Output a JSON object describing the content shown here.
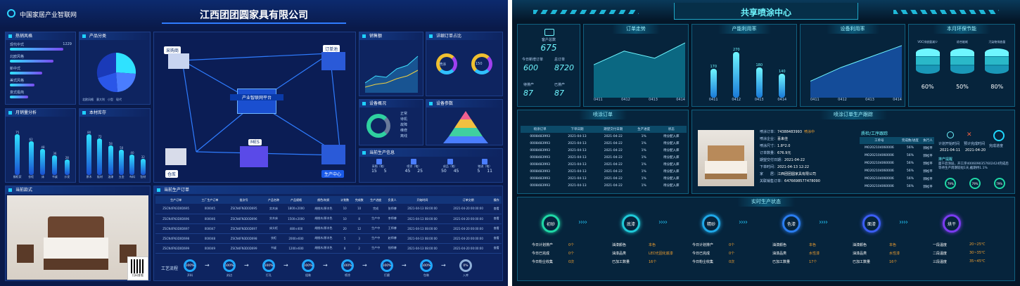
{
  "left": {
    "logo_text": "中国家居产业智联网",
    "title": "江西团团圆家具有限公司",
    "panels": {
      "hot_style": "热销风格",
      "categories": "产品分类",
      "monthly": "月销量分析",
      "stock": "本材库存",
      "sales": "销售额",
      "detail_share": "详细订单占比",
      "equipment": "设备概况",
      "params": "设备参数",
      "current_info": "当前生产信息",
      "current_model": "当前款式",
      "current_orders": "当前生产订单"
    },
    "hot_styles": [
      {
        "name": "现代中式",
        "value": "1229"
      },
      {
        "name": "北欧风格",
        "value": ""
      },
      {
        "name": "新中式",
        "value": ""
      },
      {
        "name": "美式风格",
        "value": ""
      },
      {
        "name": "意式极简",
        "value": ""
      }
    ],
    "hot_style_fills": [
      0.86,
      0.7,
      0.52,
      0.4,
      0.3
    ],
    "pie_legend": [
      "北欧风格",
      "意大利",
      "小型",
      "现代"
    ],
    "monthly_bars": [
      {
        "label": "橱柜家",
        "value": "75"
      },
      {
        "label": "衣柜",
        "value": "62"
      },
      {
        "label": "床",
        "value": "48"
      },
      {
        "label": "书桌",
        "value": "36"
      },
      {
        "label": "沙发",
        "value": "28"
      }
    ],
    "stock_bars": [
      {
        "label": "原木",
        "value": "80"
      },
      {
        "label": "板材",
        "value": "72"
      },
      {
        "label": "油漆",
        "value": "58"
      },
      {
        "label": "五金",
        "value": "50"
      },
      {
        "label": "布料",
        "value": "40"
      },
      {
        "label": "包材",
        "value": "32"
      }
    ],
    "center_nodes": {
      "platform": "产业智联网平台",
      "purchase": "采购商",
      "order": "订单池",
      "warehouse": "仓库",
      "production": "生产中心",
      "mes": "MES"
    },
    "donut_labels": [
      "喷涂",
      "150"
    ],
    "equip_legend": [
      "正常",
      "待机",
      "故障",
      "维修",
      "离线"
    ],
    "prod_info": [
      {
        "label": "采购（笔）",
        "a": "15",
        "b": "5"
      },
      {
        "label": "喷涂（笔）",
        "a": "45",
        "b": "25"
      },
      {
        "label": "成品（笔）",
        "a": "50",
        "b": "45"
      },
      {
        "label": "物流（笔）",
        "a": "5",
        "b": "11"
      }
    ],
    "order_headers": [
      "生产订单",
      "工厂生产订单",
      "批次号",
      "产品名称",
      "产品规格",
      "颜色/材质",
      "计划数",
      "完成数",
      "生产进度",
      "负责人",
      "开始时间",
      "订单交期",
      "操作"
    ],
    "order_rows": [
      [
        "ZSCN4FN3D0D695",
        "000045",
        "ZSCN4FN3D0D695",
        "实木床",
        "1800×2000",
        "胡桃木/原木色",
        "10",
        "10",
        "完成",
        "张师傅",
        "2021-04-13 08:00:00",
        "2021-04-20 00:00:00",
        "查看"
      ],
      [
        "ZSCN4FN3D0D696",
        "000046",
        "ZSCN4FN3D0D696",
        "实木床",
        "1500×2000",
        "胡桃木/原木色",
        "10",
        "8",
        "生产中",
        "李师傅",
        "2021-04-13 08:00:00",
        "2021-04-20 00:00:00",
        "查看"
      ],
      [
        "ZSCN4FN3D0D697",
        "000047",
        "ZSCN4FN3D0D697",
        "床头柜",
        "480×400",
        "胡桃木/原木色",
        "20",
        "12",
        "生产中",
        "王师傅",
        "2021-04-13 08:00:00",
        "2021-04-20 00:00:00",
        "查看"
      ],
      [
        "ZSCN4FN3D0D698",
        "000048",
        "ZSCN4FN3D0D698",
        "衣柜",
        "2000×600",
        "胡桃木/原木色",
        "5",
        "3",
        "生产中",
        "赵师傅",
        "2021-04-13 08:00:00",
        "2021-04-20 00:00:00",
        "查看"
      ],
      [
        "ZSCN4FN3D0D699",
        "000049",
        "ZSCN4FN3D0D699",
        "书桌",
        "1200×600",
        "胡桃木/原木色",
        "8",
        "2",
        "生产中",
        "钱师傅",
        "2021-04-13 08:00:00",
        "2021-04-20 00:00:00",
        "查看"
      ]
    ],
    "flow_label": "工艺流程",
    "flow": [
      {
        "p": "100%",
        "n": "开料"
      },
      {
        "p": "100%",
        "n": "封边"
      },
      {
        "p": "100%",
        "n": "打孔"
      },
      {
        "p": "100%",
        "n": "组装"
      },
      {
        "p": "100%",
        "n": "喷涂"
      },
      {
        "p": "100%",
        "n": "打磨"
      },
      {
        "p": "100%",
        "n": "包装"
      },
      {
        "p": "0%",
        "n": "入库"
      }
    ],
    "qr_caption": "扫码查看"
  },
  "right": {
    "title": "共享喷涂中心",
    "panels": {
      "orders_trend": "订单走势",
      "capacity": "产能利用率",
      "equipment": "设备利用率",
      "eco": "本月环保节能",
      "spray_orders": "喷涂订单",
      "tracking": "喷涂订单生产跟踪",
      "status": "实时生产状态"
    },
    "stats": {
      "customers_label": "客户总数",
      "customers": "675",
      "today_label": "今日新增订单",
      "today": "600",
      "total_label": "总订单",
      "total": "8720",
      "pending_label": "待排产",
      "pending": "87",
      "done_label": "已排产",
      "done": "87"
    },
    "trend_x": [
      "0411",
      "0412",
      "0413",
      "0414"
    ],
    "trend_values": [
      60,
      85,
      72,
      100
    ],
    "capacity_bars": [
      {
        "x": "0411",
        "v": "170"
      },
      {
        "x": "0412",
        "v": "270"
      },
      {
        "x": "0413",
        "v": "180"
      },
      {
        "x": "0414",
        "v": "140"
      }
    ],
    "capacity_values": [
      170,
      270,
      180,
      140
    ],
    "capacity_max": 300,
    "equip_x": [
      "0411",
      "0412",
      "0413",
      "0414"
    ],
    "equip_values": [
      30,
      55,
      75,
      95
    ],
    "eco": [
      {
        "label": "VOC排放量减少",
        "v": "60%"
      },
      {
        "label": "综合能耗",
        "v": "50%"
      },
      {
        "label": "污染物排放量",
        "v": "80%"
      }
    ],
    "spray_headers": [
      "喷涂订单",
      "下单日期",
      "期望交付日期",
      "生产进度",
      "状态"
    ],
    "spray_rows": [
      [
        "0008483993",
        "2021-04-13",
        "2021-04-22",
        "1%",
        "待分配入库"
      ],
      [
        "0008483993",
        "2021-04-13",
        "2021-04-22",
        "1%",
        "待分配入库"
      ],
      [
        "0008483993",
        "2021-04-13",
        "2021-04-22",
        "1%",
        "待分配入库"
      ],
      [
        "0008483993",
        "2021-04-13",
        "2021-04-22",
        "1%",
        "待分配入库"
      ],
      [
        "0008483993",
        "2021-04-13",
        "2021-04-22",
        "1%",
        "待分配入库"
      ],
      [
        "0008483993",
        "2021-04-13",
        "2021-04-22",
        "1%",
        "待分配入库"
      ],
      [
        "0008483993",
        "2021-04-13",
        "2021-04-22",
        "1%",
        "待分配入库"
      ],
      [
        "0008483993",
        "2021-04-13",
        "2021-04-22",
        "1%",
        "待分配入库"
      ]
    ],
    "order_info": [
      {
        "k": "喷涂订单：",
        "v": "74388483993",
        "extra": "喷涂中"
      },
      {
        "k": "喷涂企业：",
        "v": "喜来佳"
      },
      {
        "k": "喷涂尺寸：",
        "v": "1.8*2.0"
      },
      {
        "k": "订单数量：",
        "v": "676.9元"
      },
      {
        "k": "期望交付日期：",
        "v": "2021-04-22"
      },
      {
        "k": "下单时间：",
        "v": "2021-04-13 12:22"
      },
      {
        "k": "家　　居：",
        "v": "江西团团圆家具有限公司"
      },
      {
        "k": "关联销售订单：",
        "v": "6476698577478090"
      }
    ],
    "process_title": "质检/工序跟踪",
    "process_headers": [
      "工单号",
      "完成数/进度",
      "执行人"
    ],
    "process_rows": [
      [
        "MO202104060006",
        "56%",
        "郭松平"
      ],
      [
        "MO202104060006",
        "56%",
        "郭松平"
      ],
      [
        "MO202104060006",
        "56%",
        "郭松平"
      ],
      [
        "MO202104060006",
        "56%",
        "郭松平"
      ],
      [
        "MO202104060006",
        "56%",
        "郭松平"
      ],
      [
        "MO202104060006",
        "56%",
        "郭松平"
      ]
    ],
    "plan": {
      "plan_label": "计划开始时间",
      "plan": "2021-04-11",
      "finish_label": "预计完成时间",
      "finish": "2021-04-20",
      "done_label": "完成进度"
    },
    "notice_title": "排产提醒",
    "notice_text": "面干后涂层，开工序4006090357602424完成后等待生产周期较短1天,截期待1.1%",
    "gauges": [
      "79%",
      "79%",
      "79%"
    ],
    "stages": [
      {
        "name": "初砂",
        "color": "#1fd8a6"
      },
      {
        "name": "底漆",
        "color": "#1fc9d8"
      },
      {
        "name": "精砂",
        "color": "#1fa8e8"
      },
      {
        "name": "色漆",
        "color": "#2a7df0"
      },
      {
        "name": "面漆",
        "color": "#3b5ef5"
      },
      {
        "name": "烘干",
        "color": "#7a3cf0"
      }
    ],
    "stage_stats": [
      [
        {
          "k": "今日计划排产",
          "v": "0个"
        },
        {
          "k": "今日已完成",
          "v": "0个"
        },
        {
          "k": "今日粉尘收集",
          "v": "0次"
        }
      ],
      [
        {
          "k": "油漆颜色",
          "v": "本色"
        },
        {
          "k": "油漆品类",
          "v": "LED光固化底漆"
        },
        {
          "k": "已加工数量",
          "v": "16个"
        }
      ],
      [
        {
          "k": "今日计划排产",
          "v": "0个"
        },
        {
          "k": "今日已完成",
          "v": "0个"
        },
        {
          "k": "今日粉尘收集",
          "v": "0次"
        }
      ],
      [
        {
          "k": "油漆颜色",
          "v": "本色"
        },
        {
          "k": "油漆品类",
          "v": "水性漆"
        },
        {
          "k": "已加工数量",
          "v": "17个"
        }
      ],
      [
        {
          "k": "油漆颜色",
          "v": "本色"
        },
        {
          "k": "油漆品类",
          "v": "水性漆"
        },
        {
          "k": "已加工数量",
          "v": "16个"
        }
      ],
      [
        {
          "k": "一段温度",
          "v": "20~25℃"
        },
        {
          "k": "二段温度",
          "v": "30~35℃"
        },
        {
          "k": "三段温度",
          "v": "35~45℃"
        }
      ]
    ]
  }
}
